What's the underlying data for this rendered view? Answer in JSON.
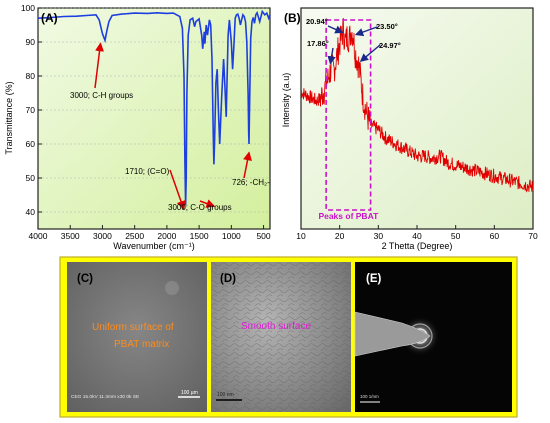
{
  "panel_a": {
    "label": "(A)",
    "xlabel": "Wavenumber (cm⁻¹)",
    "ylabel": "Transmittance (%)",
    "annotations": [
      {
        "text": "3000; C-H groups",
        "x": 3000,
        "y": 95
      },
      {
        "text": "1710; (C=O)",
        "x": 1710,
        "y": 41
      },
      {
        "text": "3000; C-O groups",
        "x": 1270,
        "y": 42
      },
      {
        "text": "726; -CH₂-",
        "x": 726,
        "y": 58
      }
    ]
  },
  "panel_b": {
    "label": "(B)",
    "xlabel": "2 Thetta (Degree)",
    "ylabel": "Intensity (a.u)",
    "box_label": "Peaks of PBAT",
    "peaks": [
      {
        "text": "20.94°",
        "x": 20.94
      },
      {
        "text": "23.50°",
        "x": 23.5
      },
      {
        "text": "17.86°",
        "x": 17.86
      },
      {
        "text": "24.97°",
        "x": 24.97
      }
    ]
  },
  "panel_c": {
    "label": "(C)",
    "caption_line1": "Uniform surface of",
    "caption_line2": "PBAT matrix",
    "info": "CEG  15.0kV  11.3mm x30  0k SE",
    "scale": "100 µm"
  },
  "panel_d": {
    "label": "(D)",
    "caption": "Smooth surface",
    "scale": "100 nm"
  },
  "panel_e": {
    "label": "(E)",
    "scale": "100 1/nm"
  },
  "chart_data": [
    {
      "type": "line",
      "panel": "A",
      "xlabel": "Wavenumber (cm⁻¹)",
      "ylabel": "Transmittance (%)",
      "xlim": [
        4000,
        400
      ],
      "ylim": [
        35,
        100
      ],
      "xticks": [
        4000,
        3500,
        3000,
        2500,
        2000,
        1500,
        1000,
        500
      ],
      "yticks": [
        40,
        50,
        60,
        70,
        80,
        90,
        100
      ],
      "color": "#1d3fe0",
      "x": [
        4000,
        3800,
        3600,
        3400,
        3250,
        3100,
        3050,
        3000,
        2960,
        2930,
        2900,
        2850,
        2700,
        2500,
        2300,
        2150,
        2000,
        1900,
        1800,
        1760,
        1735,
        1720,
        1710,
        1700,
        1690,
        1670,
        1640,
        1600,
        1570,
        1550,
        1500,
        1460,
        1445,
        1420,
        1410,
        1390,
        1370,
        1340,
        1320,
        1300,
        1280,
        1270,
        1260,
        1240,
        1220,
        1200,
        1180,
        1150,
        1120,
        1100,
        1080,
        1050,
        1030,
        1000,
        980,
        960,
        940,
        920,
        900,
        880,
        860,
        840,
        820,
        800,
        780,
        760,
        740,
        730,
        726,
        720,
        700,
        680,
        660,
        640,
        620,
        600,
        560,
        520,
        480,
        450,
        420,
        400
      ],
      "y": [
        97,
        97.2,
        97.5,
        97.6,
        97.8,
        98,
        96.5,
        92.5,
        90.5,
        93.5,
        96,
        97.8,
        98.2,
        98.5,
        98.4,
        98.6,
        98.4,
        98.5,
        97.5,
        94,
        80,
        55,
        42,
        50,
        75,
        92,
        96.5,
        97,
        94.5,
        96,
        96.8,
        92,
        88,
        93,
        89.5,
        95,
        92,
        96.5,
        95,
        85,
        62,
        54,
        61,
        78,
        82,
        70,
        60,
        74,
        85,
        77,
        68,
        92,
        96.5,
        90,
        82,
        89,
        97,
        98,
        98.2,
        97,
        95,
        96.5,
        98,
        97.5,
        96,
        90,
        75,
        63,
        60,
        68,
        91,
        96,
        97.2,
        95.5,
        98,
        98.6,
        96,
        99,
        98,
        98.5,
        97,
        98
      ]
    },
    {
      "type": "line",
      "panel": "B",
      "xlabel": "2 Thetta (Degree)",
      "ylabel": "Intensity (a.u)",
      "xlim": [
        10,
        70
      ],
      "ylim": [
        0,
        100
      ],
      "xticks": [
        10,
        20,
        30,
        40,
        50,
        60,
        70
      ],
      "color": "#e00000",
      "x": [
        10,
        12,
        14,
        15,
        16,
        17,
        17.86,
        18.5,
        19,
        20,
        20.94,
        21.5,
        22,
        22.5,
        23,
        23.5,
        24,
        24.97,
        25.5,
        26,
        27,
        28,
        29,
        30,
        32,
        34,
        36,
        38,
        40,
        42,
        44,
        46,
        48,
        50,
        52,
        54,
        56,
        58,
        60,
        62,
        64,
        66,
        68,
        70
      ],
      "y": [
        62,
        60,
        58,
        59,
        63,
        68,
        73,
        72,
        76,
        84,
        90,
        84,
        88,
        86,
        90,
        88,
        80,
        74,
        67,
        60,
        52,
        47,
        46,
        45,
        41,
        39,
        37,
        35,
        33,
        33,
        32,
        33,
        30,
        29,
        28,
        27,
        26,
        25,
        24,
        23,
        22,
        21,
        20,
        19
      ]
    }
  ]
}
